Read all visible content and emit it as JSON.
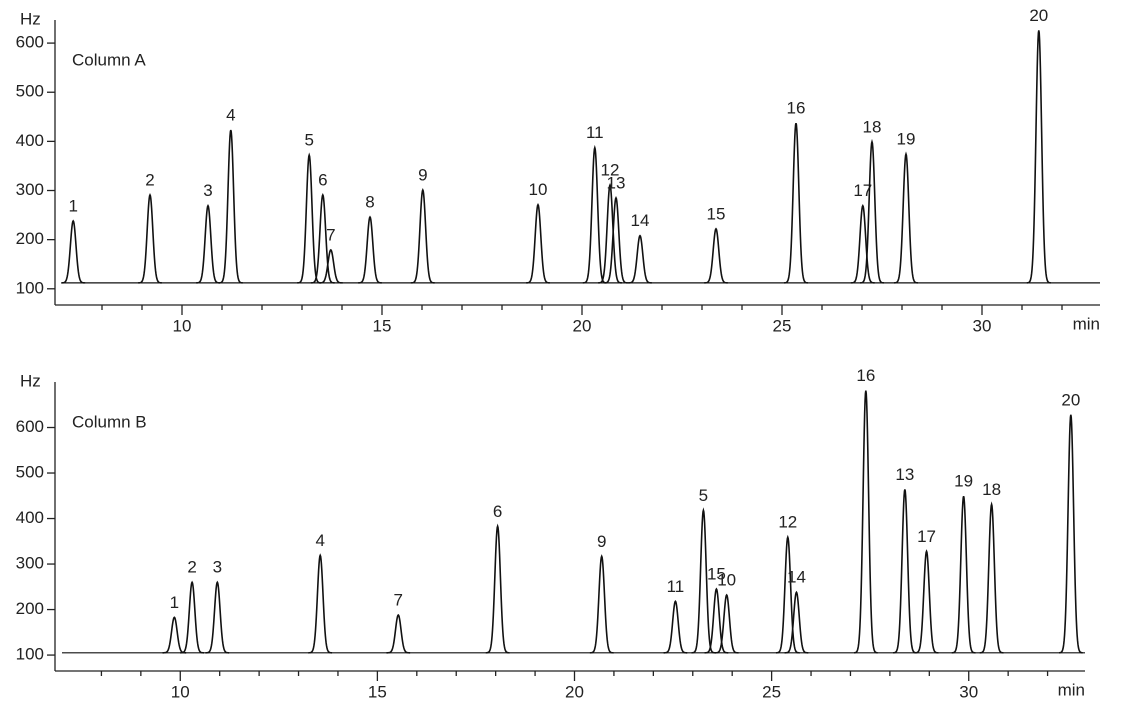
{
  "chart_data": [
    {
      "type": "peaks",
      "annotation": "Column A",
      "ylabel": "Hz",
      "xlabel": "min",
      "xlim": [
        7,
        33
      ],
      "xticks": [
        10,
        15,
        20,
        25,
        30
      ],
      "xminorticks": [
        8,
        9,
        11,
        12,
        13,
        14,
        16,
        17,
        18,
        19,
        21,
        22,
        23,
        24,
        26,
        27,
        28,
        29,
        31,
        32
      ],
      "ylim": [
        67,
        647
      ],
      "yticks": [
        100,
        200,
        300,
        400,
        500,
        600
      ],
      "baseline": 112,
      "color": "#111111",
      "labels": [
        "1",
        "2",
        "3",
        "4",
        "5",
        "6",
        "7",
        "8",
        "9",
        "10",
        "11",
        "12",
        "13",
        "14",
        "15",
        "16",
        "17",
        "18",
        "19",
        "20"
      ],
      "x": [
        7.28,
        9.2,
        10.65,
        11.22,
        13.18,
        13.52,
        13.72,
        14.7,
        16.02,
        18.9,
        20.32,
        20.7,
        20.85,
        21.45,
        23.35,
        25.35,
        27.02,
        27.25,
        28.1,
        31.42
      ],
      "values": [
        238,
        291,
        269,
        423,
        372,
        291,
        179,
        246,
        301,
        271,
        387,
        311,
        285,
        208,
        222,
        437,
        269,
        399,
        374,
        626
      ]
    },
    {
      "type": "peaks",
      "annotation": "Column B",
      "ylabel": "Hz",
      "xlabel": "min",
      "xlim": [
        7,
        33
      ],
      "xticks": [
        10,
        15,
        20,
        25,
        30
      ],
      "xminorticks": [
        8,
        9,
        11,
        12,
        13,
        14,
        16,
        17,
        18,
        19,
        21,
        22,
        23,
        24,
        26,
        27,
        28,
        29,
        31,
        32
      ],
      "ylim": [
        65,
        700
      ],
      "yticks": [
        100,
        200,
        300,
        400,
        500,
        600
      ],
      "baseline": 105,
      "color": "#111111",
      "labels": [
        "1",
        "2",
        "3",
        "4",
        "7",
        "6",
        "9",
        "11",
        "5",
        "15",
        "10",
        "12",
        "14",
        "16",
        "13",
        "17",
        "19",
        "18",
        "20"
      ],
      "x": [
        9.85,
        10.3,
        10.94,
        13.55,
        15.53,
        18.05,
        20.69,
        22.56,
        23.27,
        23.6,
        23.86,
        25.41,
        25.63,
        27.39,
        28.38,
        28.93,
        29.87,
        30.58,
        32.59
      ],
      "values": [
        183,
        260,
        260,
        319,
        188,
        383,
        317,
        218,
        418,
        245,
        232,
        359,
        238,
        681,
        464,
        328,
        449,
        431,
        628
      ]
    }
  ]
}
